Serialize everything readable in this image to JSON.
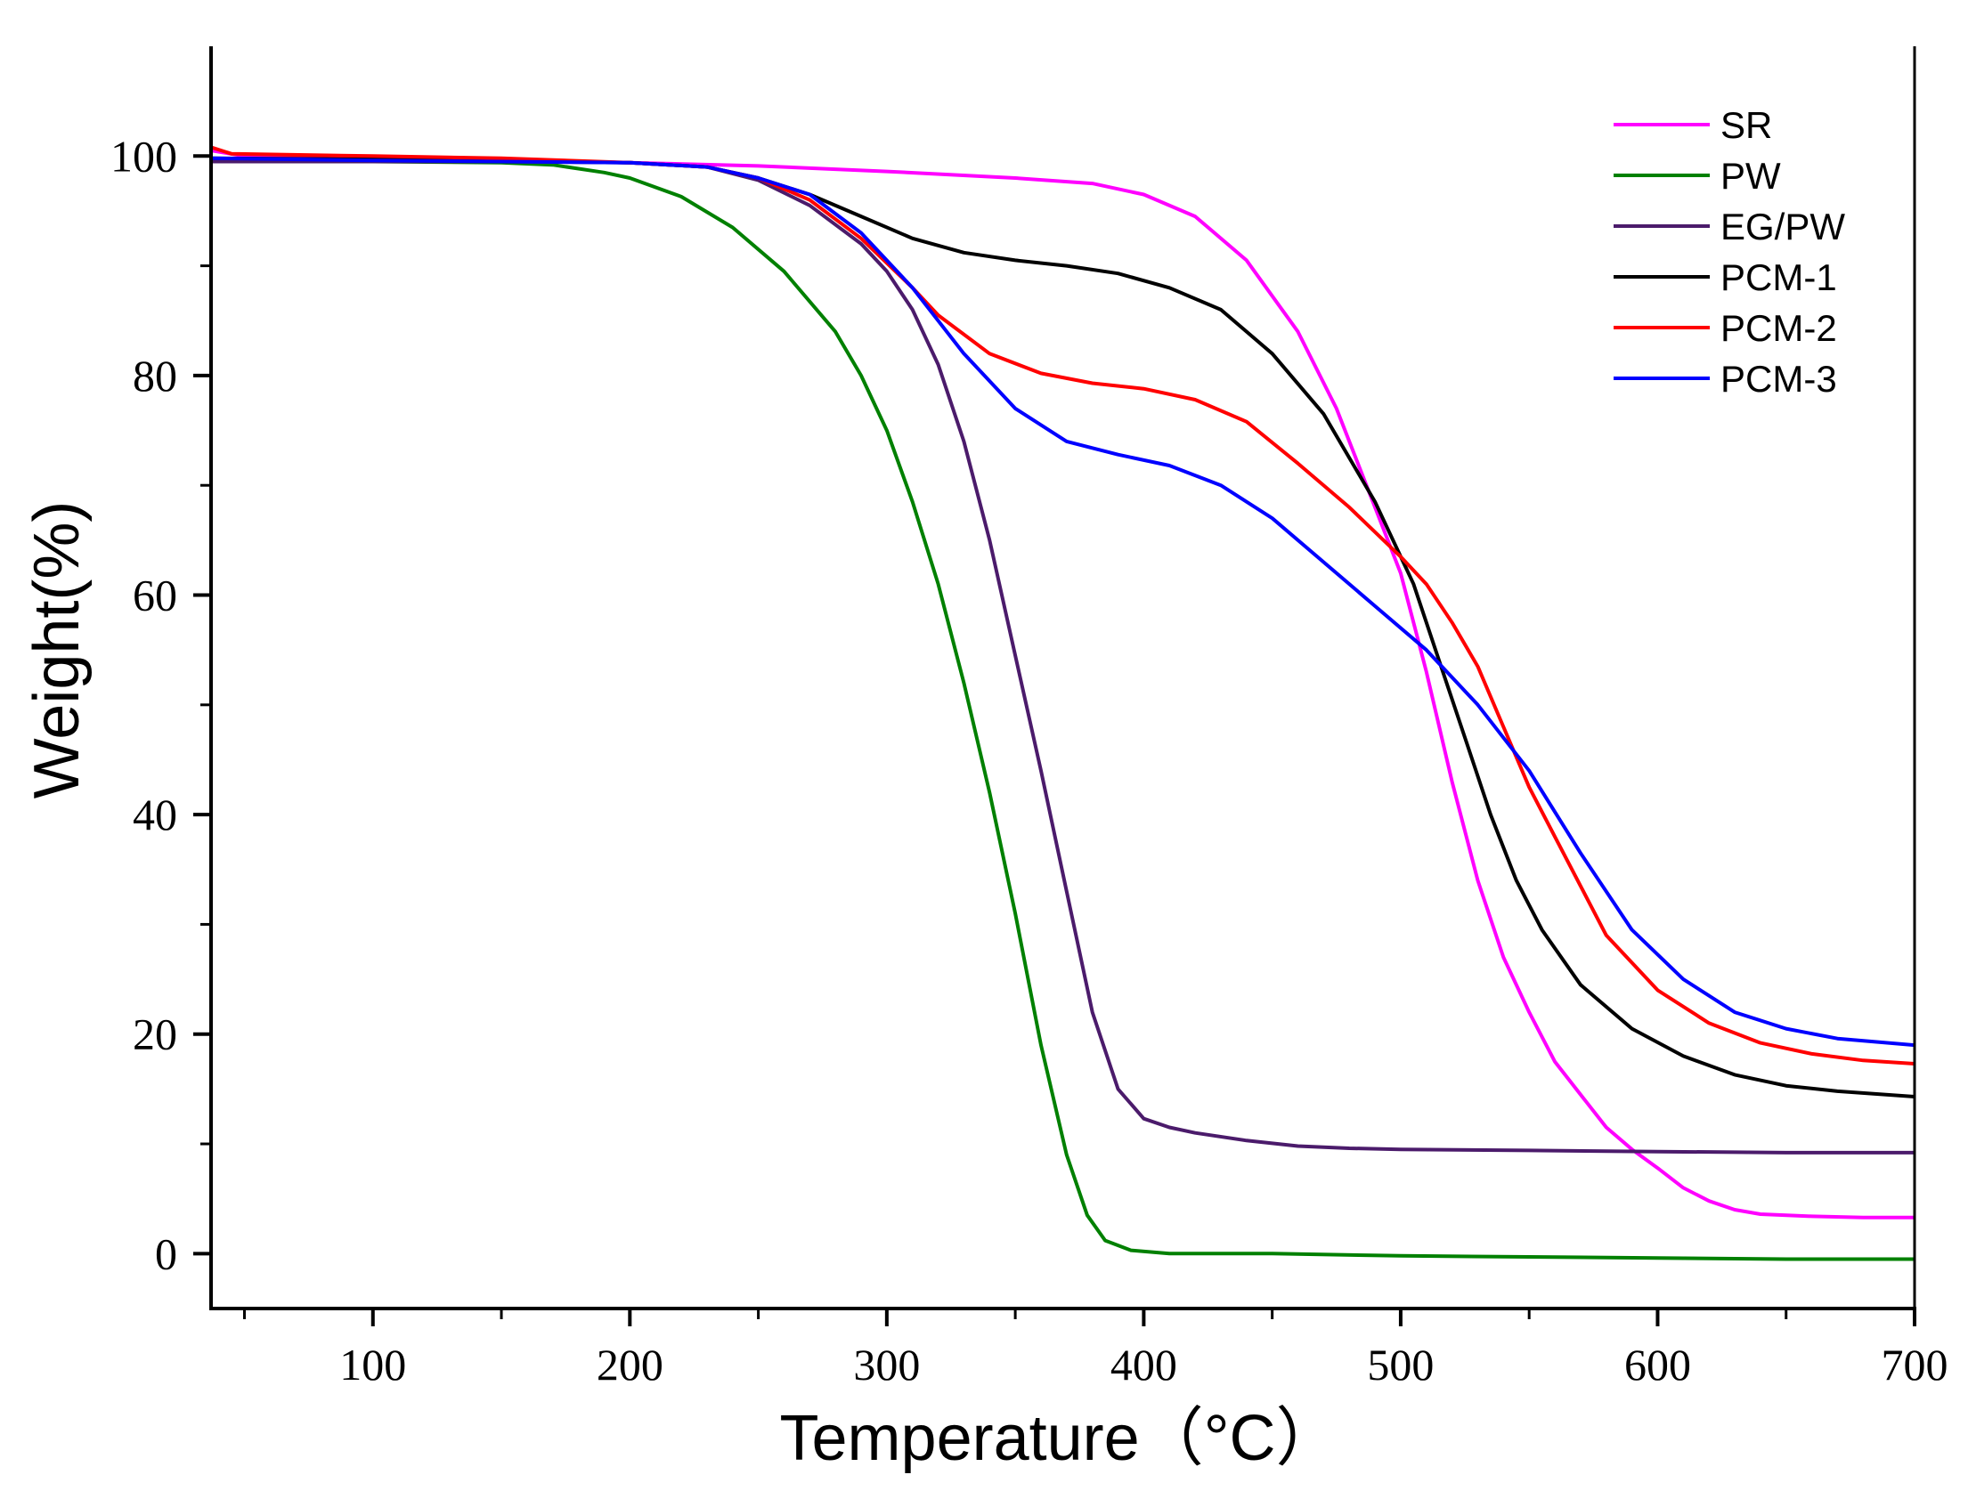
{
  "chart_data": {
    "type": "line",
    "title": "",
    "xlabel": "Temperature（°C）",
    "ylabel": "Weight(%)",
    "xlim": [
      37,
      700
    ],
    "ylim": [
      -5,
      110
    ],
    "x_ticks": [
      100,
      200,
      300,
      400,
      500,
      600,
      700
    ],
    "x_minor_ticks": [
      50,
      150,
      250,
      350,
      450,
      550,
      650
    ],
    "y_ticks": [
      0,
      20,
      40,
      60,
      80,
      100
    ],
    "y_minor_ticks": [
      10,
      30,
      50,
      70,
      90
    ],
    "grid": false,
    "legend_position": "top-right",
    "series": [
      {
        "name": "SR",
        "color": "#ff00ff",
        "points": [
          [
            37,
            100.5
          ],
          [
            50,
            100.0
          ],
          [
            100,
            99.8
          ],
          [
            150,
            99.6
          ],
          [
            200,
            99.4
          ],
          [
            250,
            99.1
          ],
          [
            300,
            98.6
          ],
          [
            350,
            98.0
          ],
          [
            380,
            97.5
          ],
          [
            400,
            96.5
          ],
          [
            420,
            94.5
          ],
          [
            440,
            90.5
          ],
          [
            460,
            84.0
          ],
          [
            475,
            77.0
          ],
          [
            490,
            68.0
          ],
          [
            500,
            62.0
          ],
          [
            510,
            53.0
          ],
          [
            520,
            43.0
          ],
          [
            530,
            34.0
          ],
          [
            540,
            27.0
          ],
          [
            550,
            22.0
          ],
          [
            560,
            17.5
          ],
          [
            570,
            14.5
          ],
          [
            580,
            11.5
          ],
          [
            590,
            9.5
          ],
          [
            600,
            7.8
          ],
          [
            610,
            6.0
          ],
          [
            620,
            4.8
          ],
          [
            630,
            4.0
          ],
          [
            640,
            3.6
          ],
          [
            660,
            3.4
          ],
          [
            680,
            3.3
          ],
          [
            700,
            3.3
          ]
        ]
      },
      {
        "name": "PW",
        "color": "#008000",
        "points": [
          [
            37,
            99.5
          ],
          [
            100,
            99.5
          ],
          [
            150,
            99.4
          ],
          [
            170,
            99.2
          ],
          [
            190,
            98.5
          ],
          [
            200,
            98.0
          ],
          [
            220,
            96.3
          ],
          [
            240,
            93.5
          ],
          [
            260,
            89.5
          ],
          [
            280,
            84.0
          ],
          [
            290,
            80.0
          ],
          [
            300,
            75.0
          ],
          [
            310,
            68.5
          ],
          [
            320,
            61.0
          ],
          [
            330,
            52.0
          ],
          [
            340,
            42.0
          ],
          [
            350,
            31.0
          ],
          [
            360,
            19.0
          ],
          [
            370,
            9.0
          ],
          [
            378,
            3.5
          ],
          [
            385,
            1.2
          ],
          [
            395,
            0.3
          ],
          [
            410,
            0.0
          ],
          [
            450,
            0.0
          ],
          [
            500,
            -0.2
          ],
          [
            550,
            -0.3
          ],
          [
            600,
            -0.4
          ],
          [
            650,
            -0.5
          ],
          [
            700,
            -0.5
          ]
        ]
      },
      {
        "name": "EG/PW",
        "color": "#4b1b6b",
        "points": [
          [
            37,
            99.5
          ],
          [
            100,
            99.5
          ],
          [
            150,
            99.5
          ],
          [
            200,
            99.4
          ],
          [
            230,
            99.0
          ],
          [
            250,
            97.8
          ],
          [
            270,
            95.5
          ],
          [
            290,
            92.0
          ],
          [
            300,
            89.5
          ],
          [
            310,
            86.0
          ],
          [
            320,
            81.0
          ],
          [
            330,
            74.0
          ],
          [
            340,
            65.0
          ],
          [
            350,
            54.5
          ],
          [
            360,
            44.0
          ],
          [
            370,
            33.0
          ],
          [
            380,
            22.0
          ],
          [
            390,
            15.0
          ],
          [
            400,
            12.3
          ],
          [
            410,
            11.5
          ],
          [
            420,
            11.0
          ],
          [
            440,
            10.3
          ],
          [
            460,
            9.8
          ],
          [
            480,
            9.6
          ],
          [
            500,
            9.5
          ],
          [
            550,
            9.4
          ],
          [
            600,
            9.3
          ],
          [
            650,
            9.2
          ],
          [
            700,
            9.2
          ]
        ]
      },
      {
        "name": "PCM-1",
        "color": "#000000",
        "points": [
          [
            37,
            99.8
          ],
          [
            100,
            99.7
          ],
          [
            150,
            99.6
          ],
          [
            200,
            99.4
          ],
          [
            230,
            99.0
          ],
          [
            250,
            98.0
          ],
          [
            270,
            96.5
          ],
          [
            290,
            94.5
          ],
          [
            310,
            92.5
          ],
          [
            330,
            91.2
          ],
          [
            350,
            90.5
          ],
          [
            370,
            90.0
          ],
          [
            390,
            89.3
          ],
          [
            410,
            88.0
          ],
          [
            430,
            86.0
          ],
          [
            450,
            82.0
          ],
          [
            470,
            76.5
          ],
          [
            490,
            68.5
          ],
          [
            505,
            61.0
          ],
          [
            515,
            54.0
          ],
          [
            525,
            47.0
          ],
          [
            535,
            40.0
          ],
          [
            545,
            34.0
          ],
          [
            555,
            29.5
          ],
          [
            570,
            24.5
          ],
          [
            590,
            20.5
          ],
          [
            610,
            18.0
          ],
          [
            630,
            16.3
          ],
          [
            650,
            15.3
          ],
          [
            670,
            14.8
          ],
          [
            700,
            14.3
          ]
        ]
      },
      {
        "name": "PCM-2",
        "color": "#ff0000",
        "points": [
          [
            37,
            100.8
          ],
          [
            45,
            100.2
          ],
          [
            100,
            100.0
          ],
          [
            150,
            99.8
          ],
          [
            200,
            99.4
          ],
          [
            230,
            99.0
          ],
          [
            250,
            98.0
          ],
          [
            270,
            96.0
          ],
          [
            290,
            92.5
          ],
          [
            310,
            88.0
          ],
          [
            320,
            85.5
          ],
          [
            340,
            82.0
          ],
          [
            360,
            80.2
          ],
          [
            380,
            79.3
          ],
          [
            400,
            78.8
          ],
          [
            420,
            77.8
          ],
          [
            440,
            75.8
          ],
          [
            460,
            72.0
          ],
          [
            480,
            68.0
          ],
          [
            500,
            63.5
          ],
          [
            510,
            61.0
          ],
          [
            520,
            57.5
          ],
          [
            530,
            53.5
          ],
          [
            540,
            48.0
          ],
          [
            550,
            42.5
          ],
          [
            560,
            38.0
          ],
          [
            570,
            33.5
          ],
          [
            580,
            29.0
          ],
          [
            600,
            24.0
          ],
          [
            620,
            21.0
          ],
          [
            640,
            19.2
          ],
          [
            660,
            18.2
          ],
          [
            680,
            17.6
          ],
          [
            700,
            17.3
          ]
        ]
      },
      {
        "name": "PCM-3",
        "color": "#0000ff",
        "points": [
          [
            37,
            99.8
          ],
          [
            100,
            99.6
          ],
          [
            150,
            99.5
          ],
          [
            200,
            99.4
          ],
          [
            230,
            99.0
          ],
          [
            250,
            98.0
          ],
          [
            270,
            96.5
          ],
          [
            290,
            93.0
          ],
          [
            310,
            88.0
          ],
          [
            330,
            82.0
          ],
          [
            350,
            77.0
          ],
          [
            370,
            74.0
          ],
          [
            390,
            72.8
          ],
          [
            410,
            71.8
          ],
          [
            430,
            70.0
          ],
          [
            450,
            67.0
          ],
          [
            470,
            63.0
          ],
          [
            490,
            59.0
          ],
          [
            510,
            55.0
          ],
          [
            530,
            50.0
          ],
          [
            550,
            44.0
          ],
          [
            570,
            36.5
          ],
          [
            590,
            29.5
          ],
          [
            610,
            25.0
          ],
          [
            630,
            22.0
          ],
          [
            650,
            20.5
          ],
          [
            670,
            19.6
          ],
          [
            700,
            19.0
          ]
        ]
      }
    ]
  }
}
